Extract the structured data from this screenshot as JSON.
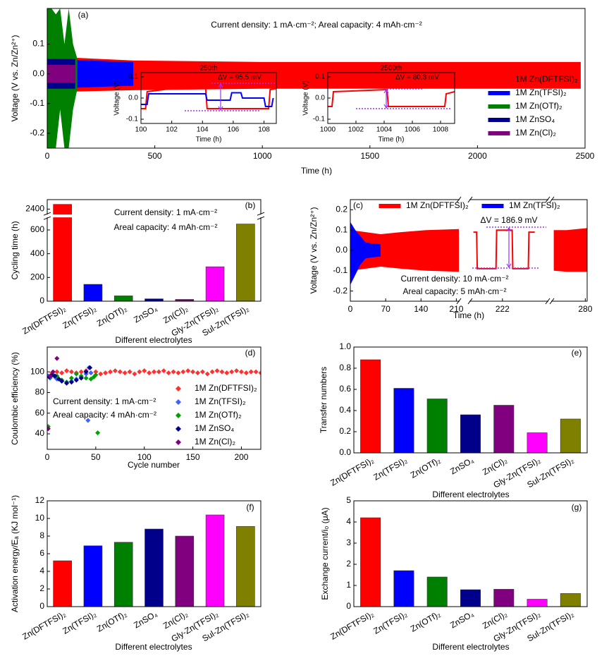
{
  "chart_data": [
    {
      "type": "band",
      "panel": "(a)",
      "xlabel": "Time (h)",
      "ylabel": "Voltage (V vs. Zn/Zn²⁺)",
      "annotations": [
        "Current density: 1 mA·cm⁻²;  Areal capacity: 4 mAh·cm⁻²"
      ],
      "xlim": [
        0,
        2500
      ],
      "xticks": [
        0,
        500,
        1000,
        1500,
        2000,
        2500
      ],
      "ylim": [
        -0.25,
        0.22
      ],
      "yticks": [
        -0.2,
        -0.1,
        {
          "value": 0,
          "label": "0.0"
        },
        0.1
      ],
      "series": [
        {
          "name": "1M Zn(DFTFSI)₂",
          "color": "#ff0000",
          "parts": [
            {
              "x": [
                0,
                100,
                400,
                1000,
                1500,
                2000,
                2480
              ],
              "upper": [
                0.06,
                0.055,
                0.045,
                0.04,
                0.04,
                0.04,
                0.04
              ],
              "lower": [
                -0.06,
                -0.06,
                -0.055,
                -0.05,
                -0.05,
                -0.05,
                -0.05
              ]
            }
          ]
        },
        {
          "name": "1M Zn(TFSI)₂",
          "color": "#0000ff",
          "parts": [
            {
              "x": [
                0,
                200,
                400
              ],
              "upper": [
                0.05,
                0.045,
                0.04
              ],
              "lower": [
                -0.05,
                -0.045,
                -0.04
              ]
            }
          ]
        },
        {
          "name": "1M Zn(OTf)₂",
          "color": "#008000",
          "parts": [
            {
              "x": [
                0,
                20,
                40,
                60,
                80,
                100,
                120,
                140
              ],
              "upper": [
                0.22,
                0.22,
                0.2,
                0.22,
                0.1,
                0.22,
                0.1,
                0.05
              ],
              "lower": [
                -0.25,
                -0.25,
                -0.25,
                -0.12,
                -0.25,
                -0.25,
                -0.12,
                -0.05
              ]
            }
          ]
        },
        {
          "name": "1M ZnSO₄",
          "color": "#00008b",
          "parts": [
            {
              "x": [
                0,
                130
              ],
              "upper": [
                0.05,
                0.05
              ],
              "lower": [
                -0.05,
                -0.05
              ]
            }
          ]
        },
        {
          "name": "1M Zn(Cl)₂",
          "color": "#800080",
          "parts": [
            {
              "x": [
                0,
                130
              ],
              "upper": [
                0.03,
                0.03
              ],
              "lower": [
                -0.03,
                -0.03
              ]
            }
          ]
        }
      ]
    },
    {
      "type": "line",
      "title": "250th",
      "xlabel": "Time (h)",
      "ylabel": "Voltage (V)",
      "annotations": [
        "ΔV = 95.5 mV"
      ],
      "xlim": [
        100,
        108.8
      ],
      "xticks": [
        100,
        102,
        104,
        106,
        108
      ],
      "ylim": [
        -0.12,
        0.12
      ],
      "yticks": [
        -0.1,
        {
          "value": 0,
          "label": "0.0"
        },
        0.1
      ],
      "series": [
        {
          "color": "#ff0000",
          "x": [
            100,
            100.3,
            100.4,
            102,
            104.2,
            104.3,
            106,
            108.3,
            108.4,
            108.8
          ],
          "y": [
            -0.05,
            -0.05,
            0.03,
            0.045,
            0.05,
            -0.05,
            -0.05,
            -0.05,
            0.04,
            0.045
          ]
        },
        {
          "color": "#0000ff",
          "x": [
            100,
            100.4,
            100.5,
            104.2,
            104.3,
            105.8,
            105.9,
            106.5,
            106.6,
            108,
            108.1,
            108.5,
            108.6
          ],
          "y": [
            -0.03,
            -0.03,
            0.02,
            0.02,
            -0.01,
            -0.01,
            0.025,
            0.025,
            0,
            0,
            -0.04,
            -0.04,
            0
          ]
        }
      ]
    },
    {
      "type": "line",
      "title": "2500th",
      "xlabel": "Time (h)",
      "ylabel": "Voltage (V)",
      "annotations": [
        "ΔV = 80.3 mV"
      ],
      "xlim": [
        1000,
        1009
      ],
      "xticks": [
        1000,
        1002,
        1004,
        1006,
        1008
      ],
      "ylim": [
        -0.12,
        0.12
      ],
      "yticks": [
        -0.1,
        {
          "value": 0,
          "label": "0.0"
        },
        0.1
      ],
      "series": [
        {
          "color": "#ff0000",
          "x": [
            1000,
            1000.3,
            1000.4,
            1004.2,
            1004.3,
            1008.3,
            1008.4,
            1009
          ],
          "y": [
            -0.04,
            -0.04,
            0.03,
            0.04,
            -0.04,
            -0.04,
            0.02,
            0.03
          ]
        }
      ]
    },
    {
      "type": "bar",
      "panel": "(b)",
      "xlabel": "Different electrolytes",
      "ylabel": "Cycling time (h)",
      "annotations": [
        "Current density: 1 mA·cm⁻²",
        "Areal capacity: 4 mAh·cm⁻²"
      ],
      "categories": [
        "Zn(DFTFSI)₂",
        "Zn(TFSI)₂",
        "Zn(OTf)₂",
        "ZnSO₄",
        "Zn(Cl)₂",
        "Gly-Zn(TFSI)₂",
        "Sul-Zn(TFSI)₂"
      ],
      "values": [
        2450,
        142,
        45,
        20,
        15,
        290,
        650
      ],
      "colors": [
        "#ff0000",
        "#0000ff",
        "#008000",
        "#00008b",
        "#800080",
        "#ff00ff",
        "#808000"
      ],
      "y_segments": [
        {
          "ylim": [
            0,
            700
          ],
          "yticks": [
            0,
            200,
            400,
            600
          ]
        },
        {
          "ylim": [
            2350,
            2500
          ],
          "yticks": [
            2400
          ]
        }
      ]
    },
    {
      "type": "band",
      "panel": "(c)",
      "xlabel": "Time (h)",
      "ylabel": "Voltage (V vs. Zn/Zn²⁺)",
      "annotations": [
        "ΔV = 186.9 mV",
        "Current density: 10 mA·cm⁻²",
        "Areal capacity: 5 mAh·cm⁻²"
      ],
      "ylim": [
        -0.25,
        0.25
      ],
      "yticks": [
        -0.2,
        -0.1,
        {
          "value": 0,
          "label": "0.0"
        },
        0.1,
        0.2
      ],
      "x_segments": [
        {
          "xlim": [
            0,
            215
          ],
          "xticks": [
            0,
            70,
            140,
            210
          ]
        },
        {
          "xlim": [
            217,
            229
          ],
          "xticks": [
            222
          ]
        },
        {
          "xlim": [
            262,
            281
          ],
          "xticks": [
            280
          ]
        }
      ],
      "series": [
        {
          "name": "1M Zn(DFTFSI)₂",
          "color": "#ff0000",
          "parts": [
            {
              "x": [
                0,
                60,
                100,
                150,
                215
              ],
              "upper": [
                0.1,
                0.08,
                0.09,
                0.1,
                0.105
              ],
              "lower": [
                -0.1,
                -0.08,
                -0.09,
                -0.1,
                -0.105
              ]
            },
            {
              "x": [
                217.5,
                218,
                218.1,
                221,
                221.1,
                223.5,
                223.6,
                226,
                226.1,
                227
              ],
              "y": [
                0.09,
                0.09,
                -0.09,
                -0.09,
                0.1,
                0.1,
                -0.09,
                -0.09,
                0.09,
                0.09
              ]
            },
            {
              "x": [
                263,
                270,
                281
              ],
              "upper": [
                0.1,
                0.1,
                0.11
              ],
              "lower": [
                -0.1,
                -0.105,
                -0.105
              ]
            }
          ]
        },
        {
          "name": "1M Zn(TFSI)₂",
          "color": "#0000ff",
          "parts": [
            {
              "x": [
                0,
                10,
                20,
                30,
                40,
                60
              ],
              "upper": [
                0.14,
                0.1,
                0.07,
                0.04,
                0.035,
                0.03
              ],
              "lower": [
                -0.17,
                -0.12,
                -0.07,
                -0.04,
                -0.035,
                -0.03
              ]
            },
            null,
            null
          ]
        }
      ]
    },
    {
      "type": "scatter",
      "panel": "(d)",
      "xlabel": "Cycle number",
      "ylabel": "Coulombic efficiency (%)",
      "annotations": [
        "Current density: 1 mA·cm⁻²",
        "Areal capacity: 4 mAh·cm⁻²"
      ],
      "xlim": [
        0,
        220
      ],
      "xticks": [
        0,
        50,
        100,
        150,
        200
      ],
      "ylim": [
        25,
        124
      ],
      "yticks": [
        40,
        60,
        80,
        100
      ],
      "series": [
        {
          "name": "1M Zn(DFTFSI)₂",
          "color": "#ff3030",
          "x": [
            1,
            5,
            10,
            15,
            20,
            25,
            30,
            35,
            40,
            45,
            50,
            55,
            60,
            65,
            70,
            75,
            80,
            85,
            90,
            95,
            100,
            105,
            110,
            115,
            120,
            125,
            130,
            135,
            140,
            145,
            150,
            155,
            160,
            165,
            170,
            175,
            180,
            185,
            190,
            195,
            200,
            205,
            210,
            215,
            220
          ],
          "y": [
            96,
            99,
            100,
            99,
            101,
            100,
            99,
            100,
            101,
            99,
            100,
            98,
            99,
            100,
            101,
            100,
            99,
            100,
            98,
            100,
            101,
            99,
            100,
            100,
            101,
            99,
            100,
            99,
            100,
            101,
            100,
            99,
            100,
            98,
            100,
            101,
            100,
            99,
            100,
            101,
            100,
            99,
            100,
            100,
            99
          ]
        },
        {
          "name": "1M Zn(TFSI)₂",
          "color": "#4060ff",
          "x": [
            1,
            3,
            5,
            8,
            10,
            15,
            20,
            25,
            30,
            35,
            40,
            42,
            43,
            45
          ],
          "y": [
            96,
            94,
            97,
            95,
            93,
            92,
            90,
            91,
            93,
            95,
            98,
            53,
            104,
            99
          ]
        },
        {
          "name": "1M Zn(OTf)₂",
          "color": "#00a000",
          "x": [
            1,
            3,
            6,
            10,
            15,
            20,
            25,
            30,
            35,
            40,
            45,
            48,
            50,
            52
          ],
          "y": [
            47,
            95,
            97,
            96,
            92,
            90,
            94,
            98,
            96,
            94,
            93,
            95,
            97,
            41
          ]
        },
        {
          "name": "1M ZnSO₄",
          "color": "#00008b",
          "x": [
            2,
            5,
            8,
            12,
            15,
            20,
            25,
            30,
            35,
            40,
            44
          ],
          "y": [
            95,
            97,
            96,
            93,
            91,
            89,
            90,
            92,
            94,
            100,
            104
          ]
        },
        {
          "name": "1M Zn(Cl)₂",
          "color": "#800080",
          "x": [
            1,
            3,
            6,
            10
          ],
          "y": [
            45,
            96,
            100,
            113
          ]
        }
      ]
    },
    {
      "type": "bar",
      "panel": "(e)",
      "xlabel": "Different electrolytes",
      "ylabel": "Transfer numbers",
      "categories": [
        "Zn(DFTFSI)₂",
        "Zn(TFSI)₂",
        "Zn(OTf)₂",
        "ZnSO₄",
        "Zn(Cl)₂",
        "Gly-Zn(TFSI)₂",
        "Sul-Zn(TFSI)₂"
      ],
      "values": [
        0.88,
        0.61,
        0.51,
        0.36,
        0.45,
        0.19,
        0.32
      ],
      "colors": [
        "#ff0000",
        "#0000ff",
        "#008000",
        "#00008b",
        "#800080",
        "#ff00ff",
        "#808000"
      ],
      "ylim": [
        0,
        1
      ],
      "yticks": [
        {
          "value": 0,
          "label": "0.0"
        },
        0.2,
        0.4,
        0.6,
        0.8,
        {
          "value": 1,
          "label": "1.0"
        }
      ]
    },
    {
      "type": "bar",
      "panel": "(f)",
      "xlabel": "Different electrolytes",
      "ylabel": "Activation energy/Eₐ (KJ mol⁻¹)",
      "categories": [
        "Zn(DFTFSI)₂",
        "Zn(TFSI)₂",
        "Zn(OTf)₂",
        "ZnSO₄",
        "Zn(Cl)₂",
        "Gly-Zn(TFSI)₂",
        "Sul-Zn(TFSI)₂"
      ],
      "values": [
        5.2,
        6.9,
        7.3,
        8.8,
        8.0,
        10.4,
        9.1
      ],
      "colors": [
        "#ff0000",
        "#0000ff",
        "#008000",
        "#00008b",
        "#800080",
        "#ff00ff",
        "#808000"
      ],
      "ylim": [
        0,
        12
      ],
      "yticks": [
        0,
        2,
        4,
        6,
        8,
        10,
        12
      ]
    },
    {
      "type": "bar",
      "panel": "(g)",
      "xlabel": "Different electrolytes",
      "ylabel": "Exchange current/i₀ (μA)",
      "categories": [
        "Zn(DFTFSI)₂",
        "Zn(TFSI)₂",
        "Zn(OTf)₂",
        "ZnSO₄",
        "Zn(Cl)₂",
        "Gly-Zn(TFSI)₂",
        "Sul-Zn(TFSI)₂"
      ],
      "values": [
        4.2,
        1.7,
        1.4,
        0.8,
        0.82,
        0.35,
        0.62
      ],
      "colors": [
        "#ff0000",
        "#0000ff",
        "#008000",
        "#00008b",
        "#800080",
        "#ff00ff",
        "#808000"
      ],
      "ylim": [
        0,
        5
      ],
      "yticks": [
        0,
        1,
        2,
        3,
        4,
        5
      ]
    }
  ]
}
